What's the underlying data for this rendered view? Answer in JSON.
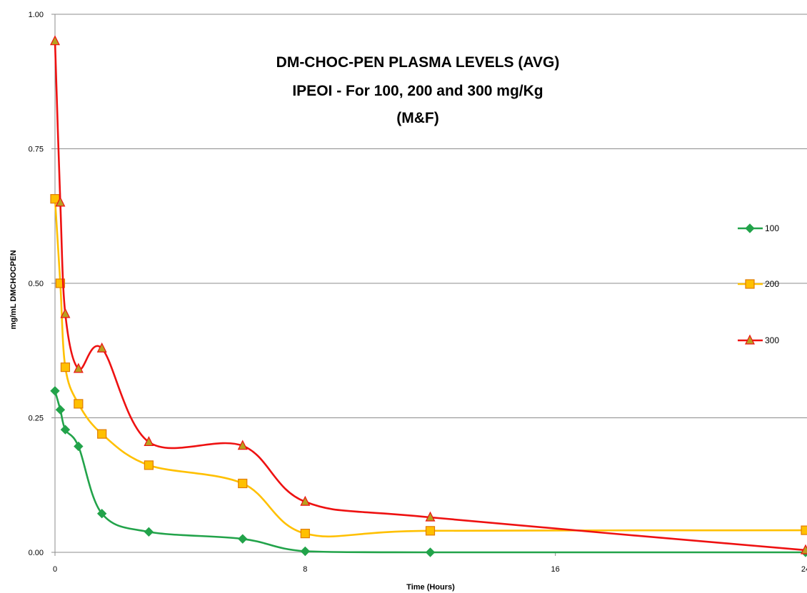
{
  "chart_data": {
    "type": "line",
    "title_lines": [
      "DM-CHOC-PEN PLASMA LEVELS (AVG)",
      "IPEOI - For 100, 200 and 300 mg/Kg",
      "(M&F)"
    ],
    "xlabel": "Time  (Hours)",
    "ylabel": "mg/mL  DMCHOCPEN",
    "xlim": [
      0,
      24
    ],
    "ylim": [
      0,
      1.0
    ],
    "x_ticks": [
      "0",
      "8",
      "16",
      "24"
    ],
    "y_ticks": [
      "0.00",
      "0.25",
      "0.50",
      "0.75",
      "1.00"
    ],
    "grid": "horizontal",
    "legend_position": "right",
    "smooth": true,
    "series": [
      {
        "name": "100",
        "color": "#22a34a",
        "marker": "diamond",
        "x": [
          0,
          0.17,
          0.33,
          0.75,
          1.5,
          3,
          6,
          8,
          12,
          24
        ],
        "y": [
          0.3,
          0.265,
          0.228,
          0.197,
          0.072,
          0.038,
          0.025,
          0.002,
          0.0,
          0.0
        ]
      },
      {
        "name": "200",
        "color": "#ffc000",
        "marker": "square",
        "x": [
          0,
          0.17,
          0.33,
          0.75,
          1.5,
          3,
          6,
          8,
          12,
          24
        ],
        "y": [
          0.657,
          0.5,
          0.344,
          0.276,
          0.22,
          0.162,
          0.128,
          0.035,
          0.04,
          0.041
        ]
      },
      {
        "name": "300",
        "color": "#ee1111",
        "marker": "triangle",
        "x": [
          0,
          0.17,
          0.33,
          0.75,
          1.5,
          3,
          6,
          8,
          12,
          24
        ],
        "y": [
          0.95,
          0.65,
          0.443,
          0.341,
          0.379,
          0.205,
          0.198,
          0.094,
          0.065,
          0.004
        ]
      }
    ]
  }
}
